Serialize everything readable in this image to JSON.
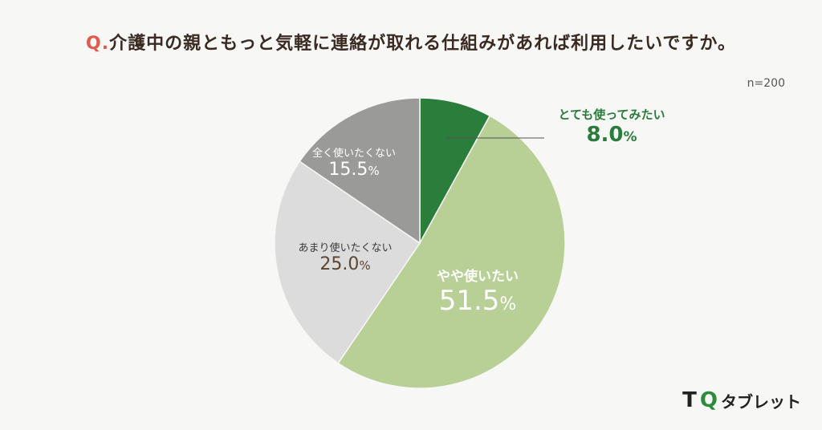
{
  "title": {
    "prefix": "Q.",
    "text": "介護中の親ともっと気軽に連絡が取れる仕組みがあれば利用したいですか。"
  },
  "n_label": "n=200",
  "logo": {
    "t": "T",
    "mark": "Q",
    "text": "タブレット"
  },
  "chart_data": {
    "type": "pie",
    "slices": [
      {
        "name": "とても使ってみたい",
        "value": 8.0,
        "label": "8.0",
        "unit": "%",
        "color": "#2b7d3c"
      },
      {
        "name": "やや使いたい",
        "value": 51.5,
        "label": "51.5",
        "unit": "%",
        "color": "#b8cf95"
      },
      {
        "name": "あまり使いたくない",
        "value": 25.0,
        "label": "25.0",
        "unit": "%",
        "color": "#dcdcdc"
      },
      {
        "name": "全く使いたくない",
        "value": 15.5,
        "label": "15.5",
        "unit": "%",
        "color": "#9a9a98"
      }
    ]
  }
}
